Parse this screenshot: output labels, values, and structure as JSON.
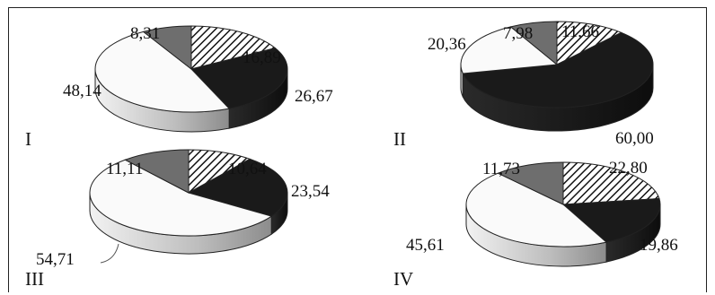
{
  "chart_data": [
    {
      "type": "pie",
      "panel_label": "I",
      "values": [
        16.89,
        26.67,
        48.14,
        8.31
      ],
      "value_labels": [
        "16,89",
        "26,67",
        "48,14",
        "8,31"
      ]
    },
    {
      "type": "pie",
      "panel_label": "II",
      "values": [
        11.66,
        60.0,
        20.36,
        7.98
      ],
      "value_labels": [
        "11,66",
        "60,00",
        "20,36",
        "7,98"
      ]
    },
    {
      "type": "pie",
      "panel_label": "III",
      "values": [
        10.64,
        23.54,
        54.71,
        11.11
      ],
      "value_labels": [
        "10,64",
        "23,54",
        "54,71",
        "11,11"
      ]
    },
    {
      "type": "pie",
      "panel_label": "IV",
      "values": [
        22.8,
        19.86,
        45.61,
        11.73
      ],
      "value_labels": [
        "22,80",
        "19,86",
        "45,61",
        "11,73"
      ]
    }
  ],
  "slice_style": {
    "order": [
      "hatched",
      "black",
      "white",
      "gray"
    ],
    "colors": {
      "hatched": "#ffffff",
      "black": "#1a1a1a",
      "white": "#fafafa",
      "gray": "#6e6e6e"
    },
    "start": "top, clockwise"
  }
}
